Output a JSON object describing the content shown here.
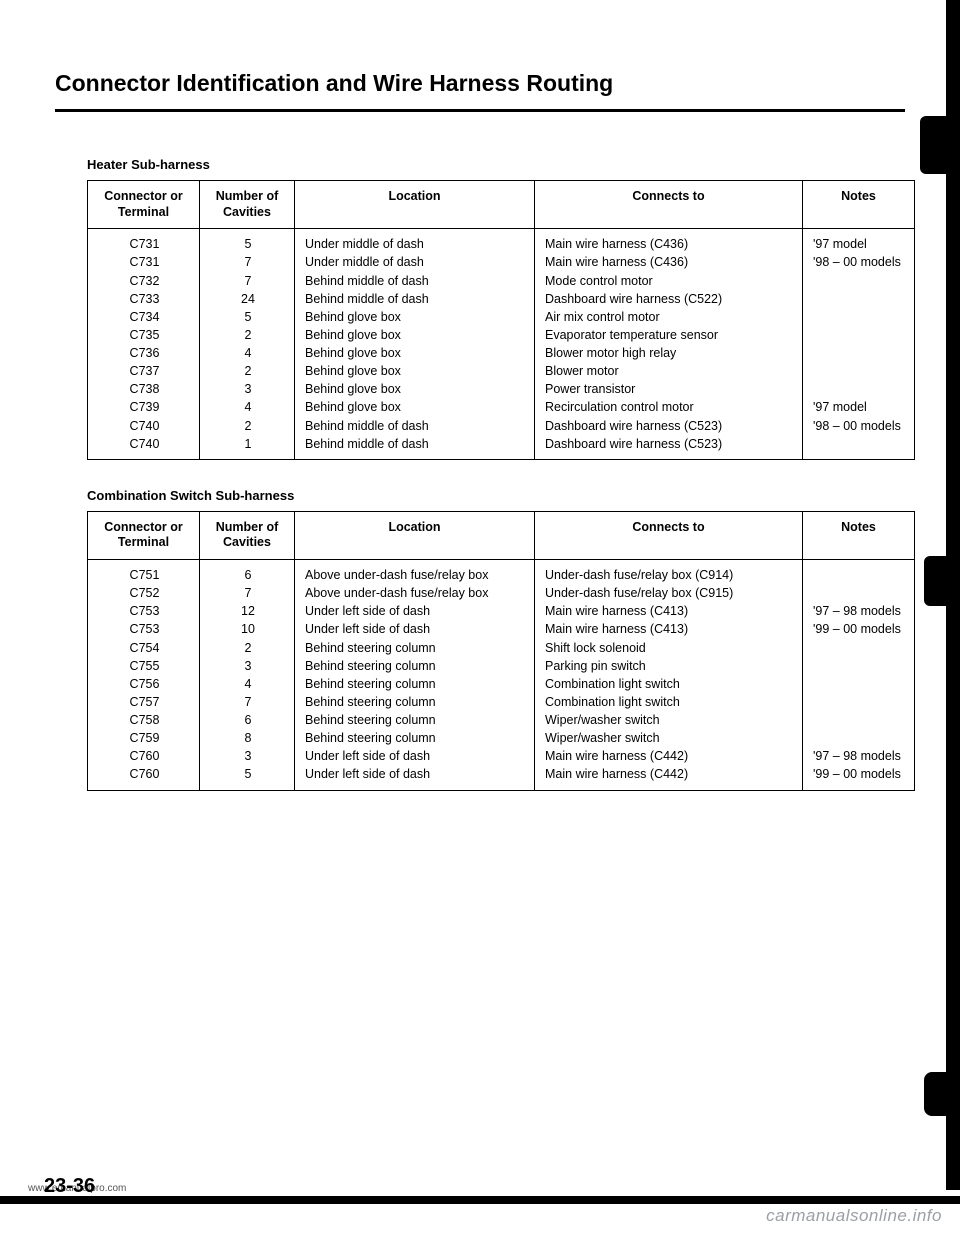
{
  "title": "Connector Identification and Wire Harness Routing",
  "sections": [
    {
      "label": "Heater Sub-harness",
      "columns": [
        "Connector or Terminal",
        "Number of Cavities",
        "Location",
        "Connects to",
        "Notes"
      ],
      "rows": [
        {
          "conn": "C731",
          "cav": "5",
          "loc": "Under middle of dash",
          "to": "Main wire harness (C436)",
          "note": "'97 model"
        },
        {
          "conn": "C731",
          "cav": "7",
          "loc": "Under middle of dash",
          "to": "Main wire harness (C436)",
          "note": "'98 – 00 models"
        },
        {
          "conn": "C732",
          "cav": "7",
          "loc": "Behind middle of dash",
          "to": "Mode control motor",
          "note": ""
        },
        {
          "conn": "C733",
          "cav": "24",
          "loc": "Behind middle of dash",
          "to": "Dashboard wire harness (C522)",
          "note": ""
        },
        {
          "conn": "C734",
          "cav": "5",
          "loc": "Behind glove box",
          "to": "Air mix control motor",
          "note": ""
        },
        {
          "conn": "C735",
          "cav": "2",
          "loc": "Behind glove box",
          "to": "Evaporator temperature sensor",
          "note": ""
        },
        {
          "conn": "C736",
          "cav": "4",
          "loc": "Behind glove box",
          "to": "Blower motor high relay",
          "note": ""
        },
        {
          "conn": "C737",
          "cav": "2",
          "loc": "Behind glove box",
          "to": "Blower motor",
          "note": ""
        },
        {
          "conn": "C738",
          "cav": "3",
          "loc": "Behind glove box",
          "to": "Power transistor",
          "note": ""
        },
        {
          "conn": "C739",
          "cav": "4",
          "loc": "Behind glove box",
          "to": "Recirculation control motor",
          "note": "'97 model"
        },
        {
          "conn": "C740",
          "cav": "2",
          "loc": "Behind middle of dash",
          "to": "Dashboard wire harness (C523)",
          "note": "'98 – 00 models"
        },
        {
          "conn": "C740",
          "cav": "1",
          "loc": "Behind middle of dash",
          "to": "Dashboard wire harness (C523)",
          "note": ""
        }
      ]
    },
    {
      "label": "Combination Switch Sub-harness",
      "columns": [
        "Connector or Terminal",
        "Number of Cavities",
        "Location",
        "Connects to",
        "Notes"
      ],
      "rows": [
        {
          "conn": "C751",
          "cav": "6",
          "loc": "Above under-dash fuse/relay box",
          "to": "Under-dash fuse/relay box (C914)",
          "note": ""
        },
        {
          "conn": "C752",
          "cav": "7",
          "loc": "Above under-dash fuse/relay box",
          "to": "Under-dash fuse/relay box (C915)",
          "note": ""
        },
        {
          "conn": "C753",
          "cav": "12",
          "loc": "Under left side of dash",
          "to": "Main wire harness (C413)",
          "note": "'97 – 98 models"
        },
        {
          "conn": "C753",
          "cav": "10",
          "loc": "Under left side of dash",
          "to": "Main wire harness (C413)",
          "note": "'99 – 00 models"
        },
        {
          "conn": "C754",
          "cav": "2",
          "loc": "Behind steering column",
          "to": "Shift lock solenoid",
          "note": ""
        },
        {
          "conn": "C755",
          "cav": "3",
          "loc": "Behind steering column",
          "to": "Parking pin switch",
          "note": ""
        },
        {
          "conn": "C756",
          "cav": "4",
          "loc": "Behind steering column",
          "to": "Combination light switch",
          "note": ""
        },
        {
          "conn": "C757",
          "cav": "7",
          "loc": "Behind steering column",
          "to": "Combination light switch",
          "note": ""
        },
        {
          "conn": "C758",
          "cav": "6",
          "loc": "Behind steering column",
          "to": "Wiper/washer switch",
          "note": ""
        },
        {
          "conn": "C759",
          "cav": "8",
          "loc": "Behind steering column",
          "to": "Wiper/washer switch",
          "note": ""
        },
        {
          "conn": "C760",
          "cav": "3",
          "loc": "Under left side of dash",
          "to": "Main wire harness (C442)",
          "note": "'97 – 98 models"
        },
        {
          "conn": "C760",
          "cav": "5",
          "loc": "Under left side of dash",
          "to": "Main wire harness (C442)",
          "note": "'99 – 00 models"
        }
      ]
    }
  ],
  "footer_url": "www.emanualpro.com",
  "page_number": "23-36",
  "watermark": "carmanualsonline.info"
}
